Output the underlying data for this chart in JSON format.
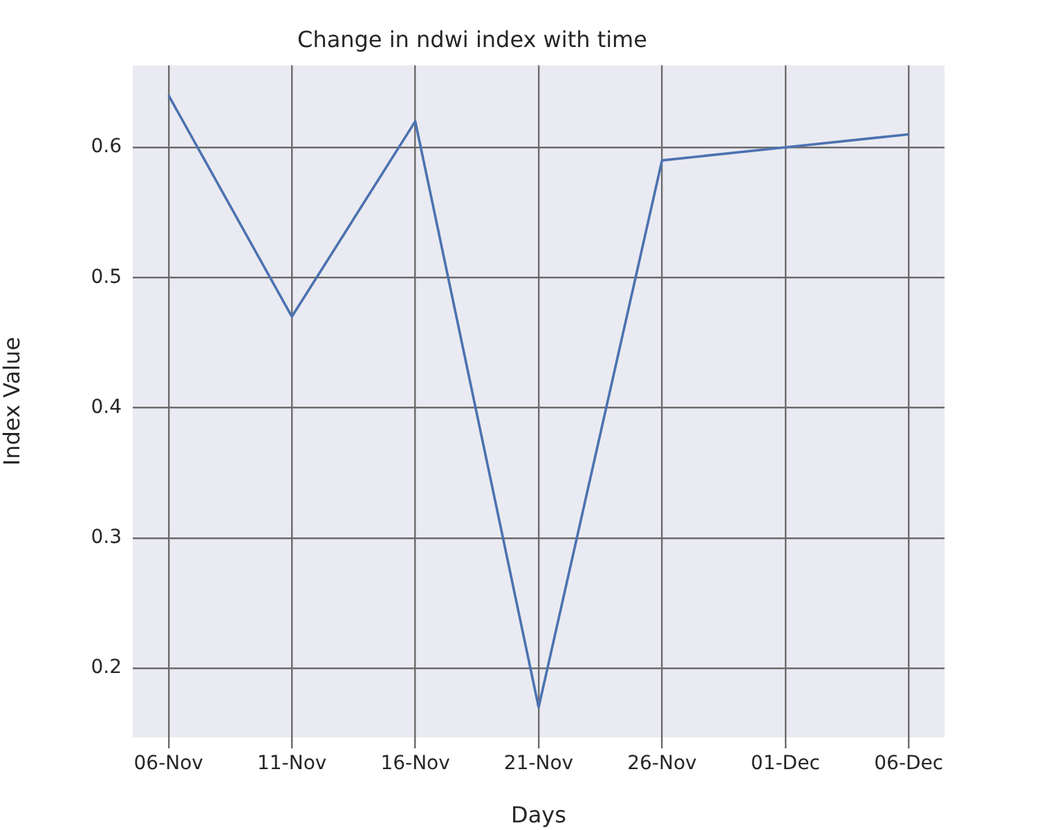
{
  "chart_data": {
    "type": "line",
    "title": "Change in ndwi index with time",
    "xlabel": "Days",
    "ylabel": "Index Value",
    "categories": [
      "06-Nov",
      "11-Nov",
      "16-Nov",
      "21-Nov",
      "26-Nov",
      "01-Dec",
      "06-Dec"
    ],
    "series": [
      {
        "color": "#4c72b0",
        "values": [
          0.64,
          0.47,
          0.62,
          0.17,
          0.59,
          0.6,
          0.61
        ]
      }
    ],
    "ylim": [
      0.147,
      0.663
    ],
    "yticks": [
      {
        "value": 0.2,
        "label": "0.2"
      },
      {
        "value": 0.3,
        "label": "0.3"
      },
      {
        "value": 0.4,
        "label": "0.4"
      },
      {
        "value": 0.5,
        "label": "0.5"
      },
      {
        "value": 0.6,
        "label": "0.6"
      }
    ],
    "grid": true,
    "legend": false,
    "marker": "none",
    "line_style": "solid"
  }
}
